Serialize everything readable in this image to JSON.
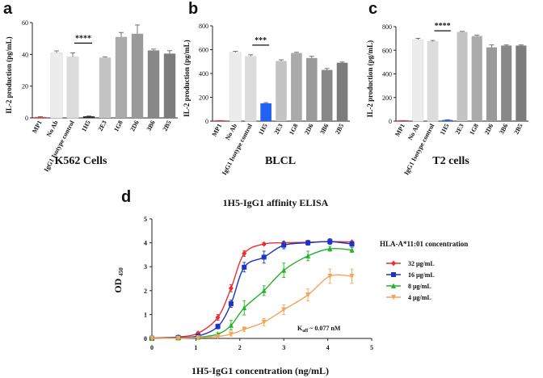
{
  "chart_data": [
    {
      "type": "bar",
      "panel": "a",
      "title": "K562 Cells",
      "ylabel": "IL-2 production (pg/mL)",
      "ylim": [
        0,
        60
      ],
      "yticks": [
        0,
        20,
        40,
        60
      ],
      "categories": [
        "MP1",
        "No Ab",
        "IgG1 Isotype control",
        "1H5",
        "2E3",
        "1G8",
        "2D6",
        "3B6",
        "2B5"
      ],
      "values": [
        0.5,
        41,
        38.5,
        1,
        38,
        51,
        53,
        42.5,
        40.5
      ],
      "errors": [
        0.3,
        1.2,
        2.5,
        0.3,
        0.5,
        2.8,
        5.5,
        0.8,
        1.8
      ],
      "colors": [
        "#e8404a",
        "#ececec",
        "#dcdcdc",
        "#2a2a2a",
        "#c4c4c4",
        "#aaaaaa",
        "#9a9a9a",
        "#888888",
        "#7c7c7c"
      ],
      "significance": "****"
    },
    {
      "type": "bar",
      "panel": "b",
      "title": "BLCL",
      "ylabel": "IL-2 production (pg/mL)",
      "ylim": [
        0,
        800
      ],
      "yticks": [
        0,
        200,
        400,
        600,
        800
      ],
      "categories": [
        "MP1",
        "No Ab",
        "IgG1 Isotype control",
        "1H5",
        "2E3",
        "1G8",
        "2D6",
        "3B6",
        "2B5"
      ],
      "values": [
        2,
        578,
        545,
        150,
        505,
        572,
        530,
        430,
        490
      ],
      "errors": [
        1,
        8,
        12,
        6,
        10,
        6,
        14,
        12,
        6
      ],
      "colors": [
        "#e8404a",
        "#ececec",
        "#dcdcdc",
        "#1f63f0",
        "#c4c4c4",
        "#aaaaaa",
        "#9a9a9a",
        "#888888",
        "#7c7c7c"
      ],
      "significance": "***"
    },
    {
      "type": "bar",
      "panel": "c",
      "title": "T2 cells",
      "ylabel": "IL-2 production (pg/mL)",
      "ylim": [
        0,
        800
      ],
      "yticks": [
        0,
        200,
        400,
        600,
        800
      ],
      "categories": [
        "MP1",
        "No Ab",
        "IgG1 Isotype control",
        "1H5",
        "2E3",
        "1G8",
        "2D6",
        "3B6",
        "2B5"
      ],
      "values": [
        2,
        690,
        675,
        10,
        755,
        720,
        625,
        640,
        640
      ],
      "errors": [
        1,
        12,
        8,
        2,
        5,
        8,
        20,
        5,
        5
      ],
      "colors": [
        "#e8404a",
        "#ececec",
        "#dcdcdc",
        "#1f63f0",
        "#c4c4c4",
        "#aaaaaa",
        "#9a9a9a",
        "#888888",
        "#7c7c7c"
      ],
      "significance": "****"
    },
    {
      "type": "line",
      "panel": "d",
      "title": "1H5-IgG1 affinity ELISA",
      "xlabel": "1H5-IgG1 concentration (ng/mL)",
      "ylabel_main": "OD",
      "ylabel_sub": "450",
      "xlim": [
        0,
        5
      ],
      "ylim": [
        0,
        5
      ],
      "xticks": [
        0,
        1,
        2,
        3,
        4,
        5
      ],
      "yticks": [
        0,
        1,
        2,
        3,
        4,
        5
      ],
      "legend_title": "HLA-A*11:01 concentration",
      "annotation_main": "K",
      "annotation_sub": "aff",
      "annotation_rest": " ~ 0.077 nM",
      "x": [
        0,
        0.6,
        1.05,
        1.5,
        1.8,
        2.1,
        2.55,
        3.0,
        3.55,
        4.05,
        4.55
      ],
      "series": [
        {
          "name": "32 μg/mL",
          "color": "#e8312f",
          "marker": "diamond",
          "values": [
            0.02,
            0.06,
            0.22,
            0.88,
            2.1,
            3.55,
            3.95,
            4.0,
            4.02,
            4.05,
            4.03
          ],
          "errors": [
            0.02,
            0.03,
            0.05,
            0.12,
            0.15,
            0.12,
            0.05,
            0.05,
            0.05,
            0.05,
            0.05
          ]
        },
        {
          "name": "16 μg/mL",
          "color": "#1e33c4",
          "marker": "square",
          "values": [
            0.01,
            0.04,
            0.1,
            0.5,
            1.45,
            2.98,
            3.4,
            3.9,
            4.0,
            4.05,
            3.95
          ],
          "errors": [
            0.02,
            0.03,
            0.05,
            0.1,
            0.15,
            0.2,
            0.25,
            0.15,
            0.1,
            0.12,
            0.1
          ]
        },
        {
          "name": "8 μg/mL",
          "color": "#23b52b",
          "marker": "triangle",
          "values": [
            0.0,
            0.02,
            0.05,
            0.18,
            0.55,
            1.28,
            2.0,
            2.85,
            3.45,
            3.75,
            3.7
          ],
          "errors": [
            0.02,
            0.02,
            0.03,
            0.05,
            0.2,
            0.3,
            0.2,
            0.3,
            0.2,
            0.1,
            0.1
          ]
        },
        {
          "name": "4 μg/mL",
          "color": "#f4a55a",
          "marker": "triangle-down",
          "values": [
            0.0,
            0.01,
            0.03,
            0.08,
            0.18,
            0.38,
            0.68,
            1.2,
            1.82,
            2.6,
            2.6
          ],
          "errors": [
            0.02,
            0.02,
            0.02,
            0.05,
            0.08,
            0.1,
            0.15,
            0.2,
            0.25,
            0.3,
            0.3
          ]
        }
      ]
    }
  ]
}
